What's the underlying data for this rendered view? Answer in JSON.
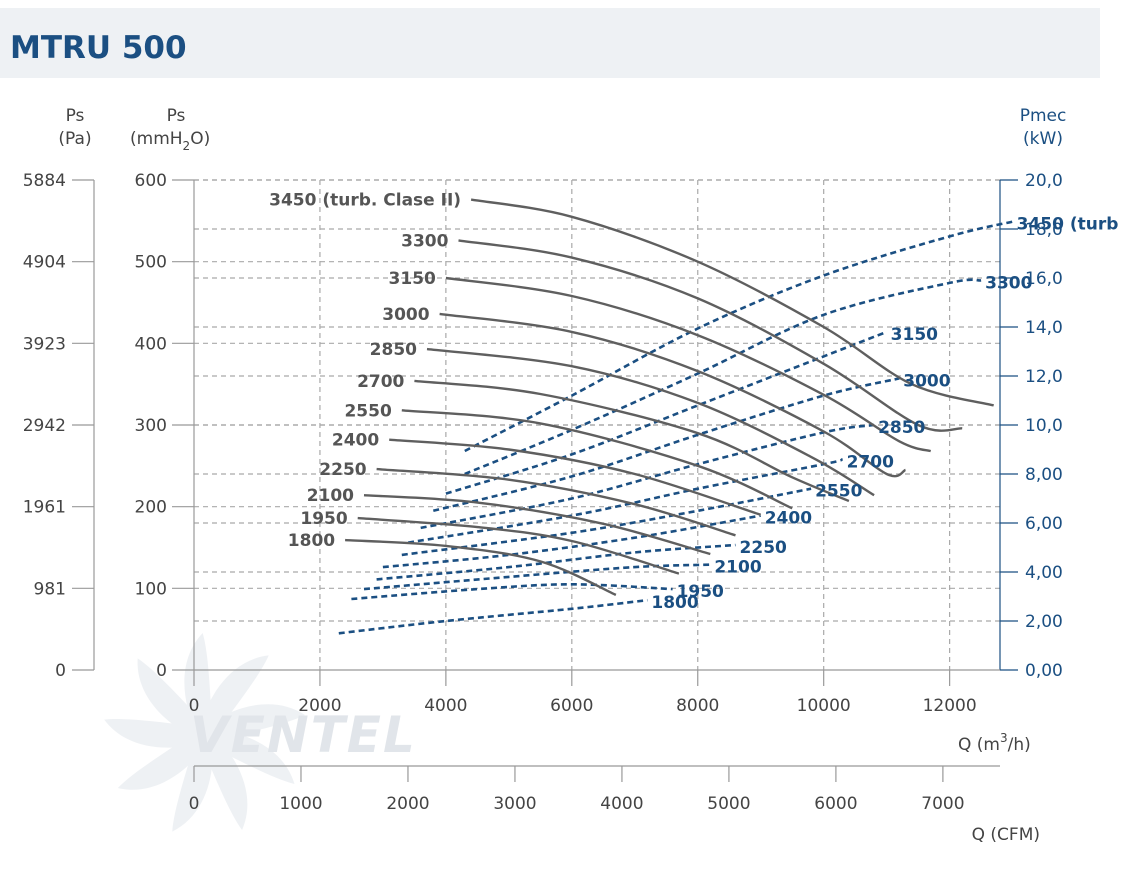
{
  "header": {
    "title": "MTRU 500"
  },
  "watermark": {
    "text": "VENTEL"
  },
  "chart_data": {
    "type": "line",
    "axes": {
      "x": {
        "label_main": "Q (m",
        "label_sup": "3",
        "label_tail": "/h)",
        "min": 0,
        "max": 12800,
        "ticks": [
          0,
          2000,
          4000,
          6000,
          8000,
          10000,
          12000
        ],
        "tick_labels": [
          "0",
          "2000",
          "4000",
          "6000",
          "8000",
          "10000",
          "12000"
        ]
      },
      "x2": {
        "label": "Q (CFM)",
        "ticks": [
          0,
          1000,
          2000,
          3000,
          4000,
          5000,
          6000,
          7000
        ],
        "tick_labels": [
          "0",
          "1000",
          "2000",
          "3000",
          "4000",
          "5000",
          "6000",
          "7000"
        ]
      },
      "y_mm": {
        "label_top": "Ps",
        "label_main": "(mmH",
        "label_sub": "2",
        "label_tail": "O)",
        "min": 0,
        "max": 600,
        "ticks": [
          0,
          100,
          200,
          300,
          400,
          500,
          600
        ],
        "tick_labels": [
          "0",
          "100",
          "200",
          "300",
          "400",
          "500",
          "600"
        ]
      },
      "y_pa": {
        "label_top": "Ps",
        "label_bottom": "(Pa)",
        "tick_labels": [
          "0",
          "981",
          "1961",
          "2942",
          "3923",
          "4904",
          "5884"
        ]
      },
      "y_kw": {
        "label_top": "Pmec",
        "label_bottom": "(kW)",
        "min": 0,
        "max": 20,
        "ticks": [
          0,
          2,
          4,
          6,
          8,
          10,
          12,
          14,
          16,
          18,
          20
        ],
        "tick_labels": [
          "0,00",
          "2,00",
          "4,00",
          "6,00",
          "8,00",
          "10,0",
          "12,0",
          "14,0",
          "16,0",
          "18,0",
          "20,0"
        ]
      }
    },
    "pressure_series": [
      {
        "name": "3450 (turb. Clase II)",
        "points": [
          [
            4400,
            576
          ],
          [
            6000,
            555
          ],
          [
            8000,
            500
          ],
          [
            10000,
            420
          ],
          [
            11400,
            350
          ],
          [
            12700,
            324
          ]
        ]
      },
      {
        "name": "3300",
        "points": [
          [
            4200,
            526
          ],
          [
            6000,
            505
          ],
          [
            8000,
            455
          ],
          [
            10000,
            375
          ],
          [
            11500,
            300
          ],
          [
            12200,
            296
          ]
        ]
      },
      {
        "name": "3150",
        "points": [
          [
            4000,
            480
          ],
          [
            6000,
            458
          ],
          [
            8000,
            410
          ],
          [
            10000,
            337
          ],
          [
            11200,
            280
          ],
          [
            11700,
            268
          ]
        ]
      },
      {
        "name": "3000",
        "points": [
          [
            3900,
            436
          ],
          [
            6000,
            414
          ],
          [
            8000,
            366
          ],
          [
            10000,
            292
          ],
          [
            11000,
            240
          ],
          [
            11300,
            245
          ]
        ]
      },
      {
        "name": "2850",
        "points": [
          [
            3700,
            393
          ],
          [
            6000,
            372
          ],
          [
            8000,
            327
          ],
          [
            9800,
            261
          ],
          [
            10800,
            214
          ]
        ]
      },
      {
        "name": "2700",
        "points": [
          [
            3500,
            354
          ],
          [
            5500,
            338
          ],
          [
            8000,
            290
          ],
          [
            9500,
            236
          ],
          [
            10400,
            207
          ]
        ]
      },
      {
        "name": "2550",
        "points": [
          [
            3300,
            318
          ],
          [
            5500,
            302
          ],
          [
            8000,
            250
          ],
          [
            9500,
            198
          ]
        ]
      },
      {
        "name": "2400",
        "points": [
          [
            3100,
            282
          ],
          [
            5000,
            270
          ],
          [
            7000,
            240
          ],
          [
            9000,
            190
          ]
        ]
      },
      {
        "name": "2250",
        "points": [
          [
            2900,
            246
          ],
          [
            5000,
            233
          ],
          [
            7000,
            203
          ],
          [
            8600,
            165
          ]
        ]
      },
      {
        "name": "2100",
        "points": [
          [
            2700,
            214
          ],
          [
            4500,
            205
          ],
          [
            6500,
            179
          ],
          [
            8200,
            142
          ]
        ]
      },
      {
        "name": "1950",
        "points": [
          [
            2600,
            186
          ],
          [
            4500,
            175
          ],
          [
            6000,
            158
          ],
          [
            7700,
            118
          ]
        ]
      },
      {
        "name": "1800",
        "points": [
          [
            2400,
            159
          ],
          [
            4000,
            152
          ],
          [
            5500,
            133
          ],
          [
            6700,
            92
          ]
        ]
      }
    ],
    "power_series": [
      {
        "name": "3450 (turb",
        "points": [
          [
            4300,
            8.94
          ],
          [
            6000,
            11.2
          ],
          [
            8000,
            13.94
          ],
          [
            10000,
            16.1
          ],
          [
            12000,
            17.7
          ],
          [
            13000,
            18.3
          ]
        ]
      },
      {
        "name": "3300",
        "points": [
          [
            4300,
            8.0
          ],
          [
            6000,
            9.8
          ],
          [
            8000,
            12.1
          ],
          [
            10000,
            14.5
          ],
          [
            12000,
            15.8
          ],
          [
            12500,
            15.9
          ]
        ]
      },
      {
        "name": "3150",
        "points": [
          [
            4000,
            7.2
          ],
          [
            6000,
            8.8
          ],
          [
            8000,
            10.8
          ],
          [
            10000,
            12.8
          ],
          [
            11000,
            13.8
          ]
        ]
      },
      {
        "name": "3000",
        "points": [
          [
            3800,
            6.5
          ],
          [
            6000,
            7.9
          ],
          [
            8000,
            9.6
          ],
          [
            10000,
            11.2
          ],
          [
            11200,
            11.9
          ]
        ]
      },
      {
        "name": "2850",
        "points": [
          [
            3600,
            5.8
          ],
          [
            6000,
            7.0
          ],
          [
            8000,
            8.4
          ],
          [
            10000,
            9.7
          ],
          [
            10800,
            10.0
          ]
        ]
      },
      {
        "name": "2700",
        "points": [
          [
            3400,
            5.2
          ],
          [
            6000,
            6.3
          ],
          [
            8000,
            7.4
          ],
          [
            10000,
            8.4
          ],
          [
            10300,
            8.6
          ]
        ]
      },
      {
        "name": "2550",
        "points": [
          [
            3300,
            4.7
          ],
          [
            6000,
            5.6
          ],
          [
            8000,
            6.5
          ],
          [
            9800,
            7.4
          ]
        ]
      },
      {
        "name": "2400",
        "points": [
          [
            3000,
            4.2
          ],
          [
            5000,
            4.7
          ],
          [
            7000,
            5.4
          ],
          [
            9000,
            6.3
          ]
        ]
      },
      {
        "name": "2250",
        "points": [
          [
            2900,
            3.7
          ],
          [
            5000,
            4.2
          ],
          [
            7000,
            4.8
          ],
          [
            8600,
            5.1
          ]
        ]
      },
      {
        "name": "2100",
        "points": [
          [
            2700,
            3.3
          ],
          [
            5000,
            3.8
          ],
          [
            7000,
            4.2
          ],
          [
            8200,
            4.3
          ]
        ]
      },
      {
        "name": "1950",
        "points": [
          [
            2500,
            2.9
          ],
          [
            4500,
            3.3
          ],
          [
            6000,
            3.5
          ],
          [
            7600,
            3.3
          ]
        ]
      },
      {
        "name": "1800",
        "points": [
          [
            2300,
            1.5
          ],
          [
            4000,
            2.0
          ],
          [
            6000,
            2.5
          ],
          [
            7200,
            2.85
          ]
        ]
      }
    ],
    "grid": true
  }
}
